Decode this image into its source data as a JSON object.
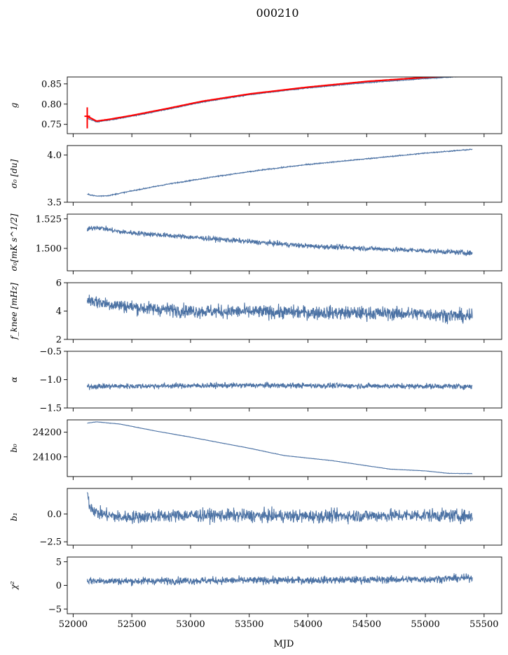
{
  "figure": {
    "title": "000210",
    "xlabel": "MJD"
  },
  "colors": {
    "series": "#4c72a4",
    "fit": "#ff0000",
    "axes": "#000000"
  },
  "chart_data": [
    {
      "type": "line",
      "id": "g",
      "ylabel": "g",
      "xlim": [
        51950,
        55650
      ],
      "ylim": [
        0.727,
        0.867
      ],
      "yticks": [
        0.75,
        0.8,
        0.85
      ],
      "ytick_labels": [
        "0.75",
        "0.80",
        "0.85"
      ],
      "shape": [
        [
          52120,
          0.765
        ],
        [
          52200,
          0.756
        ],
        [
          52300,
          0.76
        ],
        [
          52500,
          0.77
        ],
        [
          52800,
          0.787
        ],
        [
          53100,
          0.805
        ],
        [
          53500,
          0.823
        ],
        [
          54000,
          0.84
        ],
        [
          54500,
          0.853
        ],
        [
          55000,
          0.863
        ],
        [
          55400,
          0.87
        ]
      ],
      "noise": 0.001,
      "fit": {
        "name": "fit",
        "shape": [
          [
            52120,
            0.77
          ],
          [
            52200,
            0.758
          ],
          [
            52300,
            0.762
          ],
          [
            52500,
            0.772
          ],
          [
            52800,
            0.789
          ],
          [
            53100,
            0.807
          ],
          [
            53500,
            0.825
          ],
          [
            54000,
            0.842
          ],
          [
            54500,
            0.856
          ],
          [
            55000,
            0.866
          ],
          [
            55400,
            0.872
          ]
        ],
        "errorbar": {
          "x": 52120,
          "low": 0.74,
          "high": 0.792
        }
      }
    },
    {
      "type": "line",
      "id": "sigma0",
      "ylabel": "σ₀ [du]",
      "xlim": [
        51950,
        55650
      ],
      "ylim": [
        3.5,
        4.1
      ],
      "yticks": [
        3.5,
        4.0
      ],
      "ytick_labels": [
        "3.5",
        "4.0"
      ],
      "shape": [
        [
          52120,
          3.585
        ],
        [
          52200,
          3.565
        ],
        [
          52300,
          3.57
        ],
        [
          52500,
          3.62
        ],
        [
          52800,
          3.69
        ],
        [
          53200,
          3.77
        ],
        [
          53600,
          3.84
        ],
        [
          54000,
          3.9
        ],
        [
          54500,
          3.96
        ],
        [
          55000,
          4.02
        ],
        [
          55400,
          4.06
        ]
      ],
      "noise": 0.005
    },
    {
      "type": "line",
      "id": "sigma0-mk",
      "ylabel": "σ₀[mK s^1/2]",
      "xlim": [
        51950,
        55650
      ],
      "ylim": [
        1.481,
        1.529
      ],
      "yticks": [
        1.5,
        1.525
      ],
      "ytick_labels": [
        "1.500",
        "1.525"
      ],
      "shape": [
        [
          52120,
          1.516
        ],
        [
          52200,
          1.518
        ],
        [
          52400,
          1.514
        ],
        [
          52800,
          1.511
        ],
        [
          53200,
          1.508
        ],
        [
          53600,
          1.505
        ],
        [
          54000,
          1.502
        ],
        [
          54500,
          1.5
        ],
        [
          55000,
          1.498
        ],
        [
          55400,
          1.496
        ]
      ],
      "noise": 0.002
    },
    {
      "type": "line",
      "id": "fknee",
      "ylabel": "f_knee [mHz]",
      "xlim": [
        51950,
        55650
      ],
      "ylim": [
        2,
        6
      ],
      "yticks": [
        2,
        4,
        6
      ],
      "ytick_labels": [
        "2",
        "4",
        "6"
      ],
      "shape": [
        [
          52120,
          4.8
        ],
        [
          52300,
          4.5
        ],
        [
          52600,
          4.2
        ],
        [
          53000,
          4.0
        ],
        [
          54000,
          3.9
        ],
        [
          55000,
          3.8
        ],
        [
          55400,
          3.6
        ]
      ],
      "noise": 0.45
    },
    {
      "type": "line",
      "id": "alpha",
      "ylabel": "α",
      "xlim": [
        51950,
        55650
      ],
      "ylim": [
        -1.5,
        -0.5
      ],
      "yticks": [
        -1.5,
        -1.0,
        -0.5
      ],
      "ytick_labels": [
        "−1.5",
        "−1.0",
        "−0.5"
      ],
      "shape": [
        [
          52120,
          -1.12
        ],
        [
          53500,
          -1.1
        ],
        [
          55400,
          -1.12
        ]
      ],
      "noise": 0.045
    },
    {
      "type": "line",
      "id": "b0",
      "ylabel": "b₀",
      "xlim": [
        51950,
        55650
      ],
      "ylim": [
        24020,
        24250
      ],
      "yticks": [
        24100,
        24200
      ],
      "ytick_labels": [
        "24100",
        "24200"
      ],
      "shape": [
        [
          52120,
          24237
        ],
        [
          52200,
          24242
        ],
        [
          52400,
          24233
        ],
        [
          52700,
          24205
        ],
        [
          53000,
          24180
        ],
        [
          53500,
          24135
        ],
        [
          53800,
          24105
        ],
        [
          54200,
          24085
        ],
        [
          54700,
          24050
        ],
        [
          55000,
          24043
        ],
        [
          55200,
          24033
        ],
        [
          55400,
          24032
        ]
      ],
      "noise": 0.6
    },
    {
      "type": "line",
      "id": "b1",
      "ylabel": "b₁",
      "xlim": [
        51950,
        55650
      ],
      "ylim": [
        -2.8,
        2.3
      ],
      "yticks": [
        -2.5,
        0.0
      ],
      "ytick_labels": [
        "−2.5",
        "0.0"
      ],
      "shape": [
        [
          52120,
          2.0
        ],
        [
          52140,
          0.8
        ],
        [
          52200,
          0.1
        ],
        [
          52400,
          -0.3
        ],
        [
          53000,
          -0.1
        ],
        [
          54000,
          -0.2
        ],
        [
          55000,
          -0.1
        ],
        [
          55400,
          -0.2
        ]
      ],
      "noise": 0.55
    },
    {
      "type": "line",
      "id": "chi2",
      "ylabel": "χ²",
      "xlim": [
        51950,
        55650
      ],
      "ylim": [
        -6,
        6
      ],
      "yticks": [
        -5,
        0,
        5
      ],
      "ytick_labels": [
        "−5",
        "0",
        "5"
      ],
      "shape": [
        [
          52120,
          1.0
        ],
        [
          52500,
          0.9
        ],
        [
          53000,
          1.0
        ],
        [
          54000,
          1.1
        ],
        [
          55000,
          1.3
        ],
        [
          55400,
          1.6
        ]
      ],
      "noise": 0.75
    }
  ],
  "xaxis": {
    "ticks": [
      52000,
      52500,
      53000,
      53500,
      54000,
      54500,
      55000,
      55500
    ],
    "tick_labels": [
      "52000",
      "52500",
      "53000",
      "53500",
      "54000",
      "54500",
      "55000",
      "55500"
    ]
  }
}
